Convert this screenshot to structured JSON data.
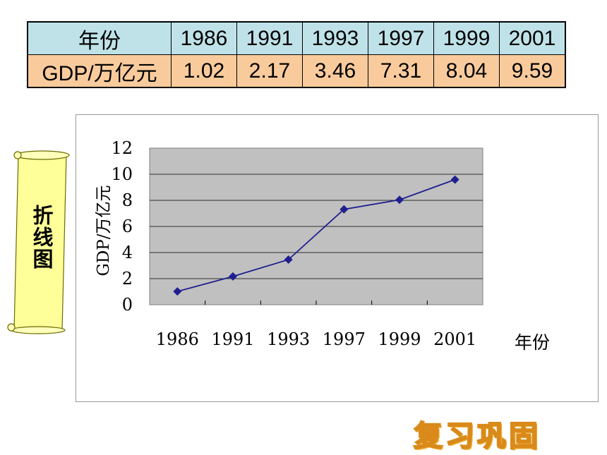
{
  "table": {
    "row_header_year": "年份",
    "row_header_gdp": "GDP/万亿元",
    "years": [
      "1986",
      "1991",
      "1993",
      "1997",
      "1999",
      "2001"
    ],
    "gdp": [
      "1.02",
      "2.17",
      "3.46",
      "7.31",
      "8.04",
      "9.59"
    ],
    "colors": {
      "year_row": "#bfe2e9",
      "gdp_row": "#f9cb9c"
    }
  },
  "banner": {
    "text": "折线图"
  },
  "stamp": {
    "text": "复习巩固"
  },
  "chart_data": {
    "type": "line",
    "categories": [
      "1986",
      "1991",
      "1993",
      "1997",
      "1999",
      "2001"
    ],
    "series": [
      {
        "values": [
          1.02,
          2.17,
          3.46,
          7.31,
          8.04,
          9.59
        ]
      }
    ],
    "title": "",
    "xlabel": "年份",
    "ylabel": "GDP/万亿元",
    "ylim": [
      0,
      12
    ],
    "yticks": [
      "0",
      "2",
      "4",
      "6",
      "8",
      "10",
      "12"
    ],
    "grid": true,
    "legend": "none",
    "colors": {
      "line": "#1f1f8f",
      "plot_bg": "#c0c0c0",
      "grid": "#000000"
    }
  }
}
